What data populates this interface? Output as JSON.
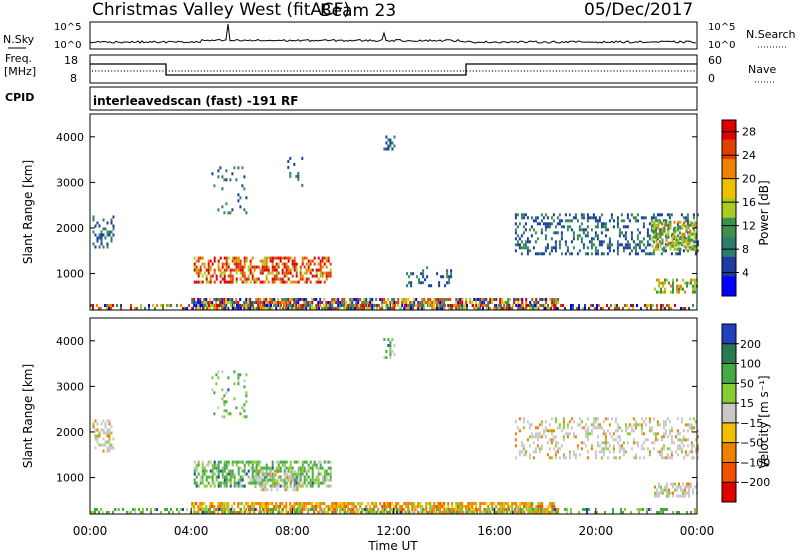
{
  "header": {
    "radar": "Christmas Valley West (fitACF)",
    "beam": "Beam 23",
    "date": "05/Dec/2017"
  },
  "top_panels": {
    "nsky_label": "N.Sky",
    "nsky_ticks_left": [
      "10^5",
      "10^0"
    ],
    "nsearch_label": "N.Search",
    "nsearch_ticks_right": [
      "10^5",
      "10^0"
    ],
    "freq_label_line1": "Freq.",
    "freq_label_line2": "[MHz]",
    "freq_ticks_left": [
      "18",
      "8"
    ],
    "nave_label": "Nave",
    "nave_ticks_right": [
      "60",
      "0"
    ],
    "cpid_label": "CPID",
    "cpid_text": "interleavedscan (fast) -191 RF"
  },
  "chart_data": [
    {
      "type": "heatmap",
      "name": "power-panel",
      "ylabel": "Slant Range [km]",
      "yticks": [
        1000,
        2000,
        3000,
        4000
      ],
      "ylim": [
        200,
        4500
      ],
      "xlim": [
        0,
        24
      ],
      "colorbar_label": "Power [dB]",
      "colorbar_ticks": [
        4,
        8,
        12,
        16,
        20,
        24,
        28
      ],
      "colorbar_range": [
        0,
        30
      ],
      "colors": [
        "#0000ff",
        "#1e3ca0",
        "#2c7d6e",
        "#3e8e4e",
        "#aacc22",
        "#f0c000",
        "#f08000",
        "#e04000",
        "#e00000"
      ],
      "regions": [
        {
          "t0": 0.1,
          "t1": 0.9,
          "r0": 1550,
          "r1": 2250,
          "level": "low",
          "density": 0.35
        },
        {
          "t0": 4.1,
          "t1": 9.5,
          "r0": 780,
          "r1": 1350,
          "level": "high",
          "density": 0.55
        },
        {
          "t0": 4.0,
          "t1": 10.8,
          "r0": 200,
          "r1": 450,
          "level": "mixed",
          "density": 0.8
        },
        {
          "t0": 10.8,
          "t1": 18.5,
          "r0": 200,
          "r1": 420,
          "level": "mixed",
          "density": 0.7
        },
        {
          "t0": 4.8,
          "t1": 6.2,
          "r0": 2300,
          "r1": 3300,
          "level": "low",
          "density": 0.12
        },
        {
          "t0": 7.8,
          "t1": 8.4,
          "r0": 2900,
          "r1": 3500,
          "level": "low",
          "density": 0.2
        },
        {
          "t0": 11.6,
          "t1": 12.0,
          "r0": 3700,
          "r1": 4000,
          "level": "low",
          "density": 0.3
        },
        {
          "t0": 12.5,
          "t1": 14.3,
          "r0": 700,
          "r1": 1100,
          "level": "low",
          "density": 0.25
        },
        {
          "t0": 16.8,
          "t1": 24.0,
          "r0": 1400,
          "r1": 2300,
          "level": "low",
          "density": 0.3
        },
        {
          "t0": 22.2,
          "t1": 24.0,
          "r0": 1500,
          "r1": 2100,
          "level": "mid",
          "density": 0.6
        },
        {
          "t0": 22.3,
          "t1": 24.0,
          "r0": 560,
          "r1": 850,
          "level": "mid",
          "density": 0.55
        },
        {
          "t0": 0.0,
          "t1": 24.0,
          "r0": 200,
          "r1": 330,
          "level": "mixed",
          "density": 0.35
        }
      ]
    },
    {
      "type": "heatmap",
      "name": "velocity-panel",
      "ylabel": "Slant Range [km]",
      "yticks": [
        1000,
        2000,
        3000,
        4000
      ],
      "ylim": [
        200,
        4500
      ],
      "xlim": [
        0,
        24
      ],
      "xlabel": "Time UT",
      "xticks": [
        "00:00",
        "04:00",
        "08:00",
        "12:00",
        "16:00",
        "20:00",
        "00:00"
      ],
      "colorbar_label": "Velocity [m s⁻¹]",
      "colorbar_ticks": [
        200,
        100,
        50,
        15,
        -15,
        -50,
        -100,
        -200
      ],
      "colors": [
        "#2040c0",
        "#2a7a50",
        "#44aa44",
        "#88cc33",
        "#c8c8c8",
        "#f0c000",
        "#f08000",
        "#f05000",
        "#e00000"
      ],
      "regions": [
        {
          "t0": 0.1,
          "t1": 0.9,
          "r0": 1550,
          "r1": 2250,
          "level": "gray",
          "density": 0.4
        },
        {
          "t0": 4.1,
          "t1": 9.5,
          "r0": 780,
          "r1": 1350,
          "level": "green",
          "density": 0.6
        },
        {
          "t0": 6.5,
          "t1": 8.3,
          "r0": 700,
          "r1": 1100,
          "level": "gray",
          "density": 0.5
        },
        {
          "t0": 4.0,
          "t1": 18.5,
          "r0": 200,
          "r1": 450,
          "level": "orange",
          "density": 0.75
        },
        {
          "t0": 4.8,
          "t1": 6.2,
          "r0": 2300,
          "r1": 3300,
          "level": "green",
          "density": 0.12
        },
        {
          "t0": 11.6,
          "t1": 12.0,
          "r0": 3600,
          "r1": 4000,
          "level": "green",
          "density": 0.3
        },
        {
          "t0": 16.8,
          "t1": 24.0,
          "r0": 1400,
          "r1": 2300,
          "level": "gray",
          "density": 0.3
        },
        {
          "t0": 22.3,
          "t1": 24.0,
          "r0": 560,
          "r1": 850,
          "level": "gray",
          "density": 0.6
        },
        {
          "t0": 0.0,
          "t1": 24.0,
          "r0": 200,
          "r1": 330,
          "level": "green",
          "density": 0.35
        }
      ]
    }
  ]
}
